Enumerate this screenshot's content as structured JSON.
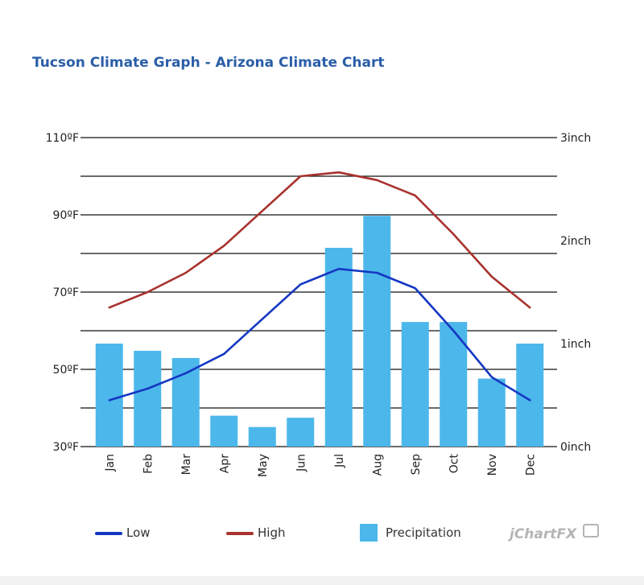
{
  "colors": {
    "title": "#2a5ea8",
    "low": "#1437c2",
    "high": "#a8322d",
    "precipitation": "#4cb7eb",
    "grid": "#111111",
    "axis_text": "#222222"
  },
  "legend": {
    "low": "Low",
    "high": "High",
    "precipitation": "Precipitation"
  },
  "brand": "jChartFX",
  "chart_data": {
    "type": "bar",
    "title": "Tucson Climate Graph - Arizona Climate Chart",
    "categories": [
      "Jan",
      "Feb",
      "Mar",
      "Apr",
      "May",
      "Jun",
      "Jul",
      "Aug",
      "Sep",
      "Oct",
      "Nov",
      "Dec"
    ],
    "series": [
      {
        "name": "Precipitation",
        "type": "bar",
        "axis": "right",
        "values": [
          1.0,
          0.93,
          0.86,
          0.3,
          0.19,
          0.28,
          1.93,
          2.24,
          1.21,
          1.21,
          0.66,
          1.0
        ]
      },
      {
        "name": "Low",
        "type": "line",
        "axis": "left",
        "values": [
          42,
          45,
          49,
          54,
          63,
          72,
          76,
          75,
          71,
          60,
          48,
          42
        ]
      },
      {
        "name": "High",
        "type": "line",
        "axis": "left",
        "values": [
          66,
          70,
          75,
          82,
          91,
          100,
          101,
          99,
          95,
          85,
          74,
          66
        ]
      }
    ],
    "y_left": {
      "min": 30,
      "max": 110,
      "minor_step": 10,
      "ticks": [
        {
          "value": 110,
          "label": "110ºF"
        },
        {
          "value": 90,
          "label": "90ºF"
        },
        {
          "value": 70,
          "label": "70ºF"
        },
        {
          "value": 50,
          "label": "50ºF"
        },
        {
          "value": 30,
          "label": "30ºF"
        }
      ]
    },
    "y_right": {
      "min": 0,
      "max": 3,
      "ticks": [
        {
          "value": 3,
          "label": "3inch"
        },
        {
          "value": 2,
          "label": "2inch"
        },
        {
          "value": 1,
          "label": "1inch"
        },
        {
          "value": 0,
          "label": "0inch"
        }
      ]
    },
    "grid": true,
    "legend_position": "bottom"
  }
}
